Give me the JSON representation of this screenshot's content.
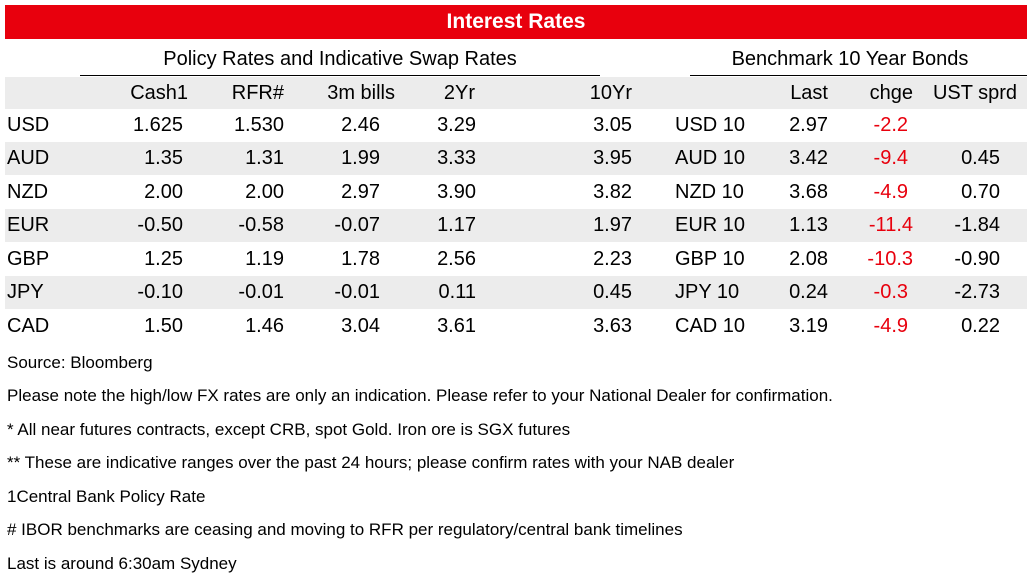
{
  "title": "Interest Rates",
  "group_headers": {
    "policy": "Policy Rates and Indicative Swap Rates",
    "bonds": "Benchmark 10 Year Bonds"
  },
  "columns": {
    "cash": "Cash1",
    "rfr": "RFR#",
    "bills": "3m bills",
    "two_yr": "2Yr",
    "ten_yr": "10Yr",
    "last": "Last",
    "chge": "chge",
    "ust": "UST sprd"
  },
  "rows": [
    {
      "ccy": "USD",
      "cash": "1.625",
      "rfr": "1.530",
      "bills": "2.46",
      "two_yr": "3.29",
      "ten_yr": "3.05",
      "bond": "USD 10",
      "last": "2.97",
      "chge": "-2.2",
      "ust": ""
    },
    {
      "ccy": "AUD",
      "cash": "1.35",
      "rfr": "1.31",
      "bills": "1.99",
      "two_yr": "3.33",
      "ten_yr": "3.95",
      "bond": "AUD 10",
      "last": "3.42",
      "chge": "-9.4",
      "ust": "0.45"
    },
    {
      "ccy": "NZD",
      "cash": "2.00",
      "rfr": "2.00",
      "bills": "2.97",
      "two_yr": "3.90",
      "ten_yr": "3.82",
      "bond": "NZD 10",
      "last": "3.68",
      "chge": "-4.9",
      "ust": "0.70"
    },
    {
      "ccy": "EUR",
      "cash": "-0.50",
      "rfr": "-0.58",
      "bills": "-0.07",
      "two_yr": "1.17",
      "ten_yr": "1.97",
      "bond": "EUR 10",
      "last": "1.13",
      "chge": "-11.4",
      "ust": "-1.84"
    },
    {
      "ccy": "GBP",
      "cash": "1.25",
      "rfr": "1.19",
      "bills": "1.78",
      "two_yr": "2.56",
      "ten_yr": "2.23",
      "bond": "GBP 10",
      "last": "2.08",
      "chge": "-10.3",
      "ust": "-0.90"
    },
    {
      "ccy": "JPY",
      "cash": "-0.10",
      "rfr": "-0.01",
      "bills": "-0.01",
      "two_yr": "0.11",
      "ten_yr": "0.45",
      "bond": "JPY 10",
      "last": "0.24",
      "chge": "-0.3",
      "ust": "-2.73"
    },
    {
      "ccy": "CAD",
      "cash": "1.50",
      "rfr": "1.46",
      "bills": "3.04",
      "two_yr": "3.61",
      "ten_yr": "3.63",
      "bond": "CAD 10",
      "last": "3.19",
      "chge": "-4.9",
      "ust": "0.22"
    }
  ],
  "notes": [
    "Source: Bloomberg",
    "Please note the high/low FX rates are only an indication. Please refer to your National Dealer for confirmation.",
    "* All near futures contracts, except CRB, spot Gold.  Iron ore is SGX futures",
    "** These are indicative ranges over the past 24 hours; please confirm rates with your NAB dealer",
    "1Central Bank Policy Rate",
    "# IBOR benchmarks are ceasing and moving to RFR per regulatory/central bank timelines",
    "Last is around 6:30am Sydney"
  ],
  "colors": {
    "brand_red": "#e8000d",
    "row_shade": "#ececec",
    "negative_change": "#e8000d"
  }
}
